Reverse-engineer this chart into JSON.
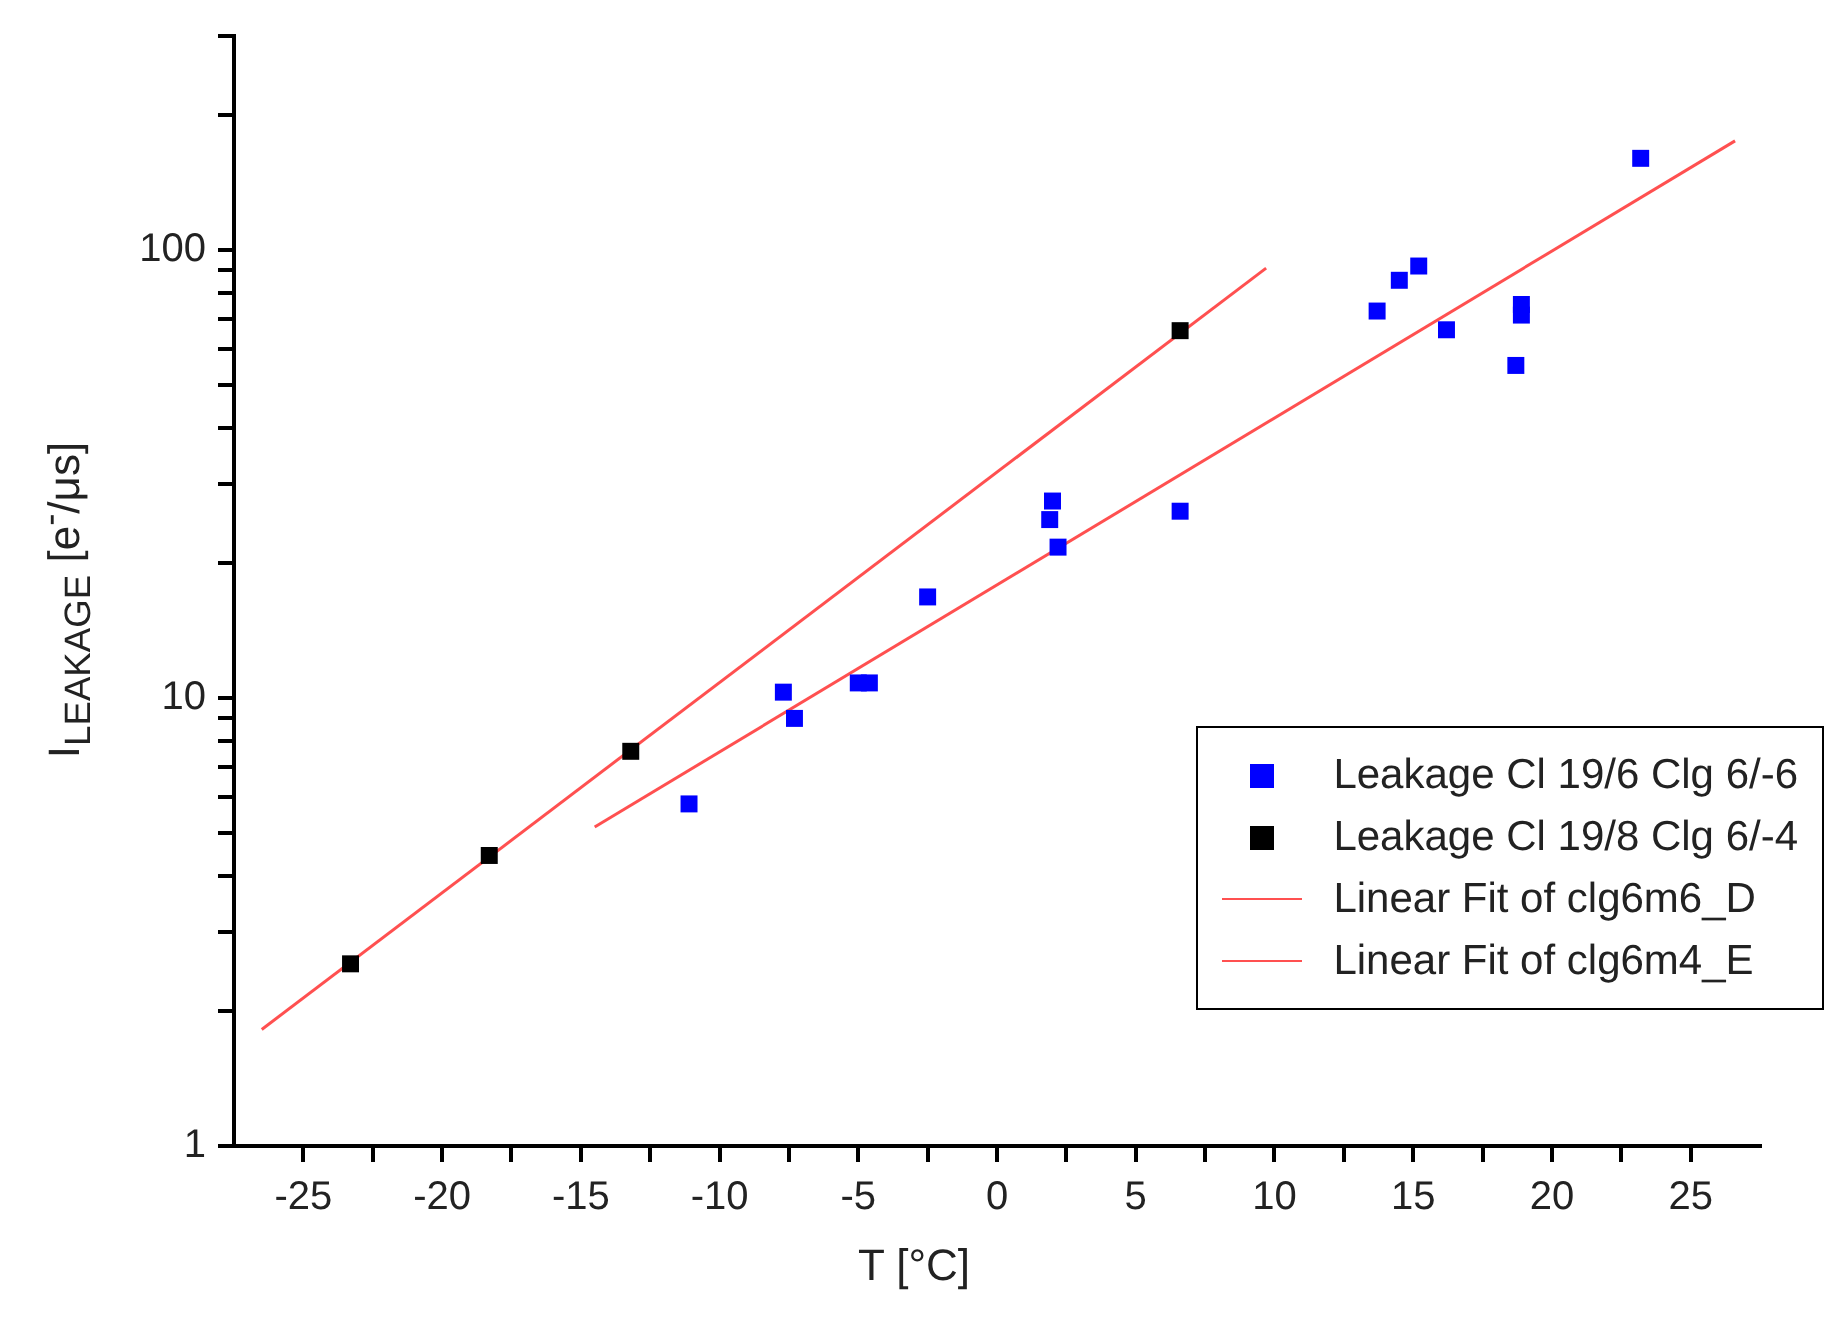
{
  "chart_data": {
    "type": "scatter",
    "xlabel": "T [°C]",
    "ylabel": "I$_{LEAKAGE}$ [e$^{-}$/μs]",
    "log": "y",
    "grid": false,
    "legend": "bottom right",
    "marker": "square",
    "xlim": [
      -27.5,
      27.5
    ],
    "xticks": [
      -25,
      {
        "value": -22.5,
        "label": null
      },
      -20,
      {
        "value": -17.5,
        "label": null
      },
      -15,
      {
        "value": -12.5,
        "label": null
      },
      -10,
      {
        "value": -7.5,
        "label": null
      },
      -5,
      {
        "value": -2.5,
        "label": null
      },
      0,
      {
        "value": 2.5,
        "label": null
      },
      5,
      {
        "value": 7.5,
        "label": null
      },
      10,
      {
        "value": 12.5,
        "label": null
      },
      15,
      {
        "value": 17.5,
        "label": null
      },
      20,
      {
        "value": 22.5,
        "label": null
      },
      25
    ],
    "ylim": [
      1,
      300
    ],
    "yticks": [
      1,
      {
        "value": 2,
        "label": null
      },
      {
        "value": 3,
        "label": null
      },
      {
        "value": 4,
        "label": null
      },
      {
        "value": 5,
        "label": null
      },
      {
        "value": 6,
        "label": null
      },
      {
        "value": 7,
        "label": null
      },
      {
        "value": 8,
        "label": null
      },
      {
        "value": 9,
        "label": null
      },
      10,
      {
        "value": 20,
        "label": null
      },
      {
        "value": 30,
        "label": null
      },
      {
        "value": 40,
        "label": null
      },
      {
        "value": 50,
        "label": null
      },
      {
        "value": 60,
        "label": null
      },
      {
        "value": 70,
        "label": null
      },
      {
        "value": 80,
        "label": null
      },
      {
        "value": 90,
        "label": null
      },
      100,
      {
        "value": 200,
        "label": null
      },
      {
        "value": 300,
        "label": null
      }
    ],
    "series": [
      {
        "name": "Leakage Cl 19/6 Clg 6/-6",
        "color": "#0000ff",
        "x": [
          -11.1,
          -7.7,
          -7.3,
          -5.0,
          -4.6,
          -2.5,
          2.0,
          1.9,
          2.2,
          6.6,
          13.7,
          14.5,
          15.2,
          16.2,
          18.7,
          18.9,
          18.9,
          23.2
        ],
        "values": [
          5.8,
          10.3,
          9.0,
          10.8,
          10.8,
          16.8,
          27.5,
          25.0,
          21.7,
          26.1,
          73,
          85.5,
          92,
          66.3,
          55.2,
          75.5,
          71.5,
          160
        ]
      },
      {
        "name": "Leakage Cl 19/8 Clg 6/-4",
        "color": "#000000",
        "x": [
          -23.3,
          -18.3,
          -13.2,
          6.6
        ],
        "values": [
          2.55,
          4.45,
          7.6,
          66
        ]
      },
      {
        "name": "Linear Fit of clg6m6_D",
        "type": "line",
        "marker": "none",
        "color": "#ff5050",
        "x": [
          -14.5,
          26.6
        ],
        "values": [
          5.15,
          175
        ]
      },
      {
        "name": "Linear Fit of clg6m4_E",
        "type": "line",
        "marker": "none",
        "color": "#ff5050",
        "x": [
          -26.5,
          9.7
        ],
        "values": [
          1.82,
          91
        ]
      }
    ]
  }
}
